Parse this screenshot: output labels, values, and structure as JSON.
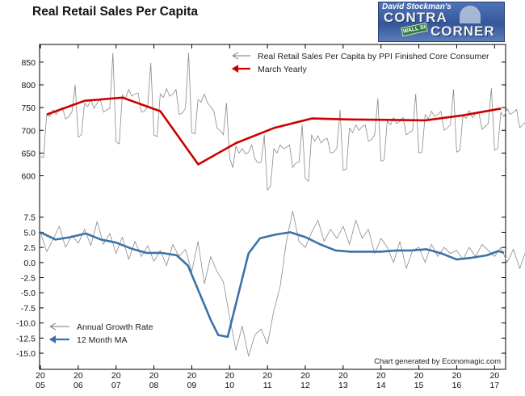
{
  "title": "Real Retail Sales Per Capita",
  "logo": {
    "line1": "David Stockman's",
    "word1": "CONTRA",
    "word2": "CORNER",
    "sign": "WALL St"
  },
  "credit": "Chart generated by Economagic.com",
  "x_ticks": [
    {
      "top": "20",
      "bottom": "05",
      "year": 2005
    },
    {
      "top": "20",
      "bottom": "06",
      "year": 2006
    },
    {
      "top": "20",
      "bottom": "07",
      "year": 2007
    },
    {
      "top": "20",
      "bottom": "08",
      "year": 2008
    },
    {
      "top": "20",
      "bottom": "09",
      "year": 2009
    },
    {
      "top": "20",
      "bottom": "10",
      "year": 2010
    },
    {
      "top": "20",
      "bottom": "11",
      "year": 2011
    },
    {
      "top": "20",
      "bottom": "12",
      "year": 2012
    },
    {
      "top": "20",
      "bottom": "13",
      "year": 2013
    },
    {
      "top": "20",
      "bottom": "14",
      "year": 2014
    },
    {
      "top": "20",
      "bottom": "15",
      "year": 2015
    },
    {
      "top": "20",
      "bottom": "16",
      "year": 2016
    },
    {
      "top": "20",
      "bottom": "17",
      "year": 2017
    }
  ],
  "colors": {
    "monthly": "#8a8a8a",
    "yearly": "#cc0000",
    "growth": "#8a8a8a",
    "ma": "#3b72a8"
  },
  "chart_data": [
    {
      "type": "line",
      "panel": "top",
      "x_range": [
        2005.0,
        2017.25
      ],
      "ylim": [
        560,
        880
      ],
      "y_ticks": [
        "850",
        "800",
        "750",
        "700",
        "650",
        "600"
      ],
      "y_tick_values": [
        850,
        800,
        750,
        700,
        650,
        600
      ],
      "legend": "top-right",
      "series": [
        {
          "name": "Real Retail Sales Per Capita by PPI Finished Core Consumer",
          "style": "thin",
          "x_start": 2005.0,
          "x_step_months": 1,
          "values": [
            642,
            640,
            735,
            730,
            745,
            735,
            745,
            750,
            725,
            730,
            740,
            800,
            685,
            690,
            760,
            752,
            768,
            748,
            760,
            768,
            740,
            745,
            748,
            870,
            675,
            670,
            778,
            770,
            790,
            775,
            780,
            782,
            740,
            742,
            752,
            848,
            690,
            686,
            780,
            772,
            792,
            775,
            780,
            790,
            735,
            738,
            748,
            870,
            695,
            692,
            768,
            762,
            780,
            760,
            752,
            742,
            705,
            700,
            690,
            760,
            640,
            618,
            665,
            650,
            660,
            648,
            652,
            668,
            638,
            628,
            630,
            690,
            568,
            578,
            660,
            650,
            668,
            660,
            662,
            668,
            618,
            628,
            630,
            712,
            594,
            588,
            690,
            676,
            688,
            672,
            680,
            682,
            650,
            652,
            660,
            745,
            612,
            615,
            705,
            695,
            712,
            700,
            708,
            712,
            676,
            680,
            690,
            770,
            632,
            635,
            722,
            712,
            728,
            715,
            720,
            728,
            690,
            695,
            700,
            780,
            650,
            652,
            735,
            725,
            742,
            730,
            735,
            742,
            700,
            705,
            712,
            790,
            652,
            656,
            732,
            726,
            744,
            728,
            736,
            740,
            702,
            708,
            715,
            792,
            656,
            660,
            740,
            730,
            748,
            735,
            740,
            746,
            706,
            712,
            720,
            800,
            660,
            664,
            742,
            735,
            752,
            738,
            745,
            750,
            710,
            715,
            720,
            805,
            662,
            668,
            745,
            738,
            755,
            740,
            748,
            752,
            712,
            718,
            725,
            808,
            640,
            646,
            738,
            730,
            745,
            732,
            738,
            742,
            706,
            710,
            718,
            800,
            650,
            652,
            745,
            736,
            752,
            740,
            746,
            750,
            710,
            716,
            725,
            808,
            655,
            658,
            750,
            742,
            758,
            745,
            752,
            755,
            715,
            722,
            730,
            815,
            660,
            662,
            752,
            746,
            760,
            748,
            755,
            760,
            718,
            725,
            732,
            820,
            665,
            668,
            755,
            748,
            762,
            750,
            758,
            762,
            720,
            728,
            735,
            825,
            668,
            672,
            758,
            750,
            765,
            752,
            760,
            765,
            722,
            730,
            738,
            830,
            670,
            675,
            760,
            752,
            768,
            755,
            762,
            768,
            725,
            732,
            740,
            835,
            672,
            678,
            762,
            755,
            770,
            758,
            765,
            770,
            728,
            735,
            742,
            840,
            675,
            680,
            765,
            758,
            772,
            760,
            768,
            772,
            730,
            738,
            745,
            850,
            655,
            650
          ]
        },
        {
          "name": "March Yearly",
          "style": "thick",
          "x": [
            2005.17,
            2006.17,
            2007.17,
            2008.17,
            2009.17,
            2010.17,
            2011.17,
            2012.17,
            2013.17,
            2014.17,
            2015.17,
            2016.17,
            2017.17
          ],
          "values": [
            735,
            765,
            772,
            742,
            625,
            672,
            705,
            726,
            724,
            723,
            722,
            733,
            748
          ]
        }
      ]
    },
    {
      "type": "line",
      "panel": "bottom",
      "x_range": [
        2005.0,
        2017.25
      ],
      "ylim": [
        -17,
        8
      ],
      "y_ticks": [
        "7.5",
        "5.0",
        "2.5",
        "0.0",
        "-2.5",
        "-5.0",
        "-7.5",
        "-10.0",
        "-12.5",
        "-15.0"
      ],
      "y_tick_values": [
        7.5,
        5.0,
        2.5,
        0.0,
        -2.5,
        -5.0,
        -7.5,
        -10.0,
        -12.5,
        -15.0
      ],
      "legend": "bottom-left",
      "series": [
        {
          "name": "Annual Growth Rate",
          "style": "thin",
          "x_start": 2005.0,
          "x_step_months": 2,
          "values": [
            5.0,
            1.8,
            3.8,
            6.0,
            2.5,
            4.5,
            3.2,
            5.5,
            2.8,
            6.8,
            3.0,
            4.8,
            1.5,
            4.2,
            0.5,
            3.5,
            1.0,
            2.8,
            0.2,
            2.0,
            -0.5,
            3.0,
            1.0,
            2.2,
            -1.5,
            3.5,
            -3.5,
            1.0,
            -1.5,
            -3.2,
            -9.0,
            -14.5,
            -10.5,
            -15.5,
            -12.0,
            -11.0,
            -13.5,
            -8.0,
            -4.0,
            3.5,
            8.5,
            3.5,
            2.5,
            5.0,
            7.0,
            3.5,
            5.5,
            4.0,
            6.0,
            3.0,
            7.0,
            4.0,
            5.5,
            1.5,
            4.0,
            2.5,
            0.0,
            3.5,
            -1.0,
            2.0,
            2.5,
            0.0,
            3.0,
            1.0,
            2.5,
            1.5,
            2.0,
            0.5,
            2.5,
            1.0,
            3.0,
            2.0,
            1.0,
            2.5,
            0.0,
            2.2,
            -1.0,
            2.0,
            0.5,
            -0.5,
            1.5,
            3.0,
            -0.5,
            5.0,
            0.5,
            2.0,
            1.5,
            2.5,
            1.0,
            3.0,
            3.5,
            1.5,
            -1.0,
            2.5
          ]
        },
        {
          "name": "12 Month MA",
          "style": "thick",
          "x": [
            2005.0,
            2005.4,
            2005.8,
            2006.2,
            2006.6,
            2007.0,
            2007.4,
            2007.8,
            2008.2,
            2008.6,
            2008.9,
            2009.2,
            2009.5,
            2009.7,
            2009.95,
            2010.2,
            2010.5,
            2010.8,
            2011.2,
            2011.6,
            2012.0,
            2012.4,
            2012.8,
            2013.2,
            2013.6,
            2014.0,
            2014.4,
            2014.8,
            2015.2,
            2015.6,
            2016.0,
            2016.4,
            2016.8,
            2017.1,
            2017.25
          ],
          "values": [
            5.0,
            3.8,
            4.2,
            4.8,
            3.8,
            3.3,
            2.3,
            1.6,
            1.6,
            1.2,
            -0.5,
            -5.0,
            -9.5,
            -12.0,
            -12.3,
            -6.0,
            1.5,
            4.0,
            4.6,
            5.0,
            4.2,
            3.0,
            2.0,
            1.8,
            1.8,
            1.8,
            2.0,
            2.0,
            2.2,
            1.5,
            0.5,
            0.8,
            1.2,
            1.9,
            1.6
          ]
        }
      ]
    }
  ]
}
